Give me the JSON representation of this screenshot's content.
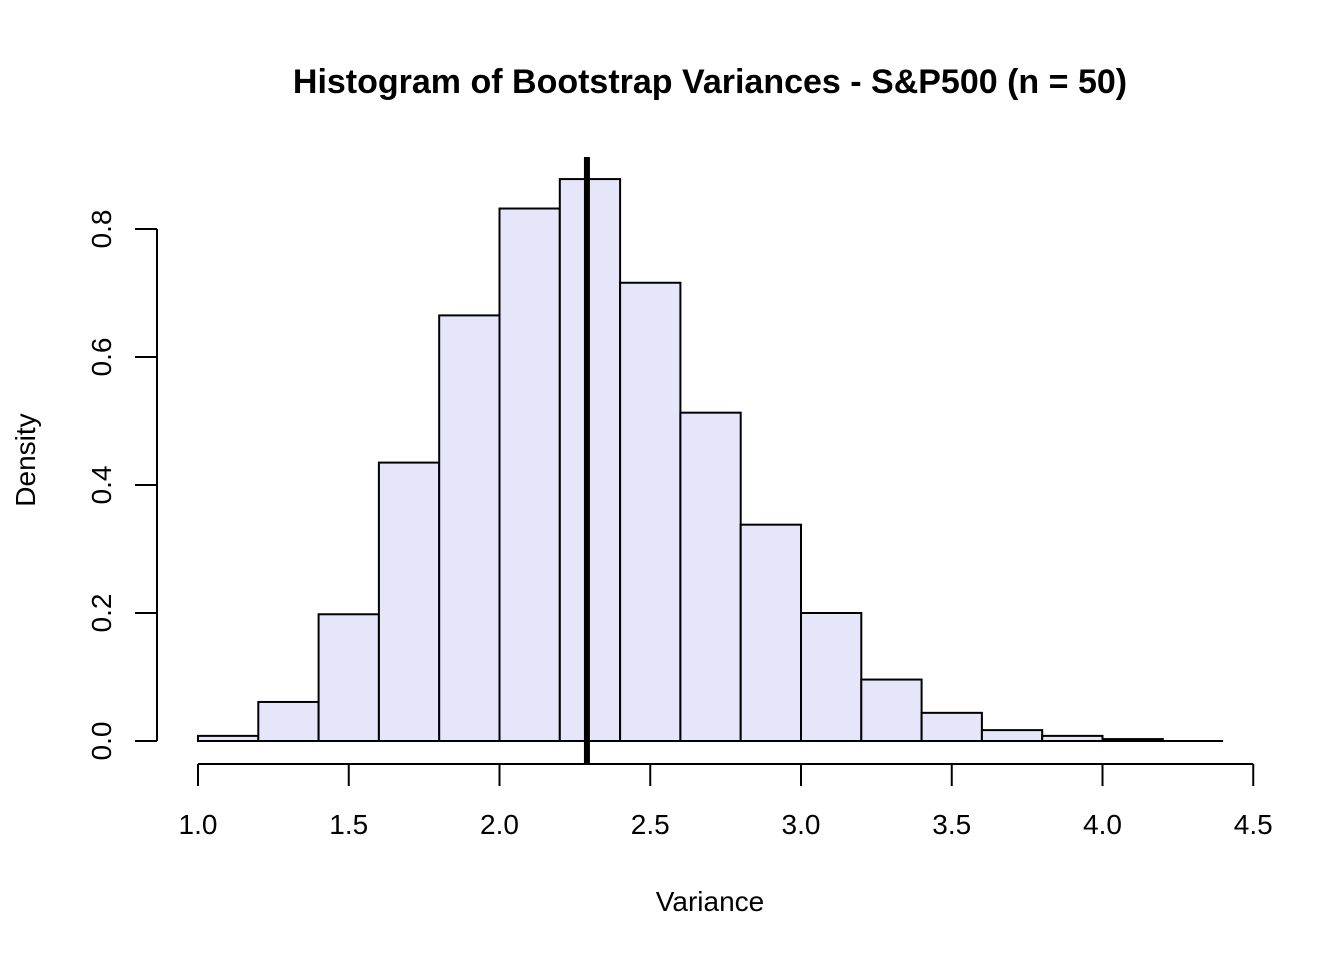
{
  "chart_data": {
    "type": "bar",
    "title": "Histogram of Bootstrap Variances - S&P500 (n = 50)",
    "xlabel": "Variance",
    "ylabel": "Density",
    "xlim": [
      1.0,
      4.5
    ],
    "ylim": [
      0.0,
      0.8
    ],
    "x_ticks": [
      1.0,
      1.5,
      2.0,
      2.5,
      3.0,
      3.5,
      4.0,
      4.5
    ],
    "x_tick_labels": [
      "1.0",
      "1.5",
      "2.0",
      "2.5",
      "3.0",
      "3.5",
      "4.0",
      "4.5"
    ],
    "y_ticks": [
      0.0,
      0.2,
      0.4,
      0.6,
      0.8
    ],
    "y_tick_labels": [
      "0.0",
      "0.2",
      "0.4",
      "0.6",
      "0.8"
    ],
    "bins": [
      {
        "x0": 1.0,
        "x1": 1.2,
        "density": 0.008
      },
      {
        "x0": 1.2,
        "x1": 1.4,
        "density": 0.061
      },
      {
        "x0": 1.4,
        "x1": 1.6,
        "density": 0.198
      },
      {
        "x0": 1.6,
        "x1": 1.8,
        "density": 0.435
      },
      {
        "x0": 1.8,
        "x1": 2.0,
        "density": 0.665
      },
      {
        "x0": 2.0,
        "x1": 2.2,
        "density": 0.832
      },
      {
        "x0": 2.2,
        "x1": 2.4,
        "density": 0.878
      },
      {
        "x0": 2.4,
        "x1": 2.6,
        "density": 0.716
      },
      {
        "x0": 2.6,
        "x1": 2.8,
        "density": 0.513
      },
      {
        "x0": 2.8,
        "x1": 3.0,
        "density": 0.338
      },
      {
        "x0": 3.0,
        "x1": 3.2,
        "density": 0.2
      },
      {
        "x0": 3.2,
        "x1": 3.4,
        "density": 0.096
      },
      {
        "x0": 3.4,
        "x1": 3.6,
        "density": 0.044
      },
      {
        "x0": 3.6,
        "x1": 3.8,
        "density": 0.017
      },
      {
        "x0": 3.8,
        "x1": 4.0,
        "density": 0.008
      },
      {
        "x0": 4.0,
        "x1": 4.2,
        "density": 0.003
      },
      {
        "x0": 4.2,
        "x1": 4.4,
        "density": 0.0
      }
    ],
    "reference_line_x": 2.29,
    "bar_fill": "#e6e6fa",
    "bar_stroke": "#000000",
    "line_color": "#000000",
    "grid": false,
    "legend": "none"
  }
}
